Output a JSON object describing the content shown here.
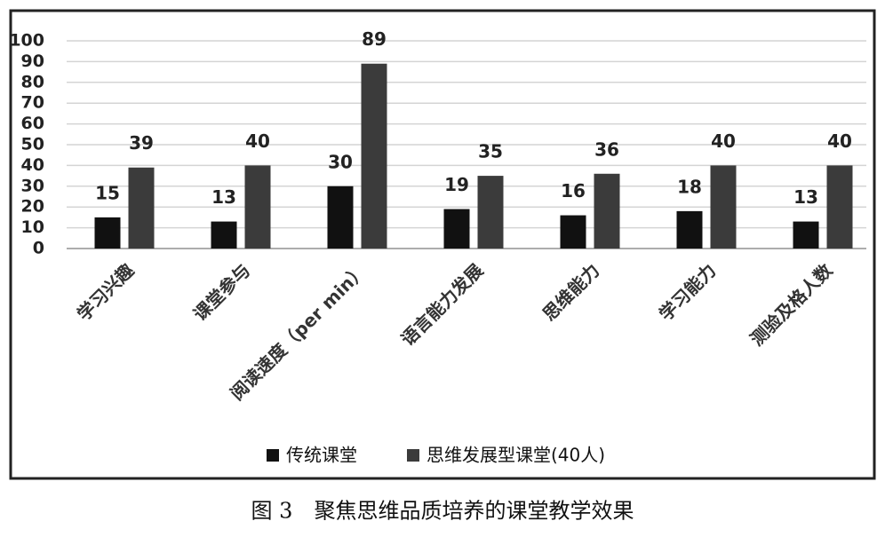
{
  "chart_data": {
    "type": "bar",
    "caption": "图 3　聚焦思维品质培养的课堂教学效果",
    "categories": [
      "学习兴趣",
      "课堂参与",
      "阅读速度（per min）",
      "语言能力发展",
      "思维能力",
      "学习能力",
      "测验及格人数"
    ],
    "series": [
      {
        "name": "传统课堂",
        "color": "#111111",
        "values": [
          15,
          13,
          30,
          19,
          16,
          18,
          13
        ]
      },
      {
        "name": "思维发展型课堂(40人)",
        "color": "#3b3b3b",
        "values": [
          39,
          40,
          89,
          35,
          36,
          40,
          40
        ]
      }
    ],
    "ylim": [
      0,
      100
    ],
    "yticks": [
      0,
      10,
      20,
      30,
      40,
      50,
      60,
      70,
      80,
      90,
      100
    ],
    "grid": true,
    "legend": "bottom"
  }
}
